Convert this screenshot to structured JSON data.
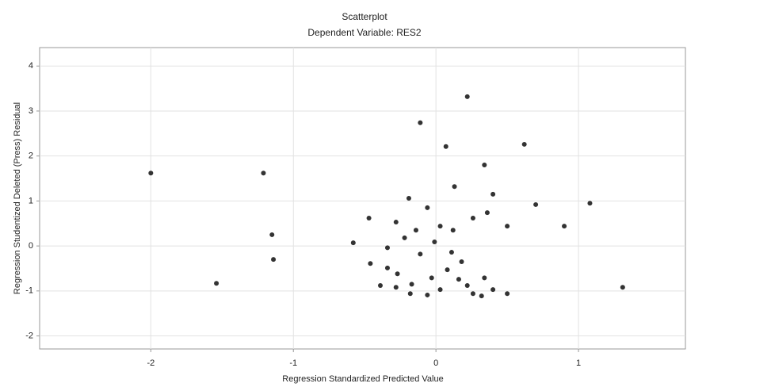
{
  "chart_data": {
    "type": "scatter",
    "title": "Scatterplot",
    "subtitle": "Dependent Variable: RES2",
    "x_label": "Regression Standardized Predicted Value",
    "y_label": "Regression Studentized Deleted (Press) Residual",
    "xlim": [
      -2.78,
      1.75
    ],
    "ylim": [
      -2.29,
      4.41
    ],
    "xticks": [
      -2,
      -1,
      0,
      1
    ],
    "yticks": [
      -2,
      -1,
      0,
      1,
      2,
      3,
      4
    ],
    "grid": true,
    "color": "#333333",
    "x": [
      -2.0,
      -1.21,
      -1.54,
      -1.15,
      -1.14,
      0.22,
      -0.11,
      0.07,
      0.34,
      0.62,
      0.13,
      -0.19,
      -0.06,
      0.4,
      0.7,
      1.08,
      0.9,
      -0.47,
      -0.28,
      -0.14,
      0.03,
      0.12,
      0.26,
      0.36,
      0.5,
      -0.58,
      -0.34,
      -0.22,
      -0.11,
      -0.01,
      0.11,
      0.18,
      -0.46,
      -0.34,
      -0.27,
      -0.17,
      -0.39,
      -0.28,
      -0.03,
      0.08,
      0.16,
      0.22,
      0.26,
      0.34,
      0.4,
      0.5,
      0.32,
      -0.18,
      -0.06,
      0.03,
      1.31
    ],
    "values": [
      1.62,
      1.62,
      -0.83,
      0.25,
      -0.3,
      3.32,
      2.74,
      2.21,
      1.8,
      2.26,
      1.32,
      1.06,
      0.85,
      1.15,
      0.92,
      0.95,
      0.44,
      0.62,
      0.53,
      0.35,
      0.44,
      0.35,
      0.62,
      0.74,
      0.44,
      0.07,
      -0.04,
      0.18,
      -0.18,
      0.09,
      -0.14,
      -0.35,
      -0.39,
      -0.49,
      -0.62,
      -0.85,
      -0.88,
      -0.92,
      -0.71,
      -0.53,
      -0.74,
      -0.88,
      -1.06,
      -0.71,
      -0.97,
      -1.06,
      -1.11,
      -1.06,
      -1.09,
      -0.97,
      -0.92
    ]
  }
}
